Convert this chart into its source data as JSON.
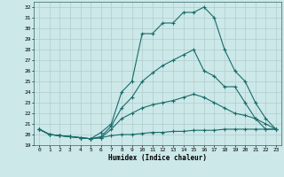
{
  "xlabel": "Humidex (Indice chaleur)",
  "background_color": "#cce8e8",
  "grid_color": "#b0cccc",
  "line_color": "#1a6b6b",
  "xlim": [
    -0.5,
    23.5
  ],
  "ylim": [
    19.0,
    32.5
  ],
  "xticks": [
    0,
    1,
    2,
    3,
    4,
    5,
    6,
    7,
    8,
    9,
    10,
    11,
    12,
    13,
    14,
    15,
    16,
    17,
    18,
    19,
    20,
    21,
    22,
    23
  ],
  "yticks": [
    19,
    20,
    21,
    22,
    23,
    24,
    25,
    26,
    27,
    28,
    29,
    30,
    31,
    32
  ],
  "line1_x": [
    0,
    1,
    2,
    3,
    4,
    5,
    6,
    7,
    8,
    9,
    10,
    11,
    12,
    13,
    14,
    15,
    16,
    17,
    18,
    19,
    20,
    21,
    22,
    23
  ],
  "line1_y": [
    20.5,
    20.0,
    19.9,
    19.8,
    19.7,
    19.6,
    20.2,
    21.0,
    24.0,
    25.0,
    29.5,
    29.5,
    30.5,
    30.5,
    31.5,
    31.5,
    32.0,
    31.0,
    28.0,
    26.0,
    25.0,
    23.0,
    21.5,
    20.5
  ],
  "line2_x": [
    0,
    1,
    2,
    3,
    4,
    5,
    6,
    7,
    8,
    9,
    10,
    11,
    12,
    13,
    14,
    15,
    16,
    17,
    18,
    19,
    20,
    21,
    22,
    23
  ],
  "line2_y": [
    20.5,
    20.0,
    19.9,
    19.8,
    19.7,
    19.6,
    19.8,
    20.8,
    22.5,
    23.5,
    25.0,
    25.8,
    26.5,
    27.0,
    27.5,
    28.0,
    26.0,
    25.5,
    24.5,
    24.5,
    23.0,
    21.5,
    20.5,
    20.5
  ],
  "line3_x": [
    0,
    1,
    2,
    3,
    4,
    5,
    6,
    7,
    8,
    9,
    10,
    11,
    12,
    13,
    14,
    15,
    16,
    17,
    18,
    19,
    20,
    21,
    22,
    23
  ],
  "line3_y": [
    20.5,
    20.0,
    19.9,
    19.8,
    19.7,
    19.6,
    19.7,
    20.5,
    21.5,
    22.0,
    22.5,
    22.8,
    23.0,
    23.2,
    23.5,
    23.8,
    23.5,
    23.0,
    22.5,
    22.0,
    21.8,
    21.5,
    21.0,
    20.5
  ],
  "line4_x": [
    0,
    1,
    2,
    3,
    4,
    5,
    6,
    7,
    8,
    9,
    10,
    11,
    12,
    13,
    14,
    15,
    16,
    17,
    18,
    19,
    20,
    21,
    22,
    23
  ],
  "line4_y": [
    20.5,
    20.0,
    19.9,
    19.8,
    19.7,
    19.6,
    19.7,
    19.9,
    20.0,
    20.0,
    20.1,
    20.2,
    20.2,
    20.3,
    20.3,
    20.4,
    20.4,
    20.4,
    20.5,
    20.5,
    20.5,
    20.5,
    20.5,
    20.5
  ]
}
